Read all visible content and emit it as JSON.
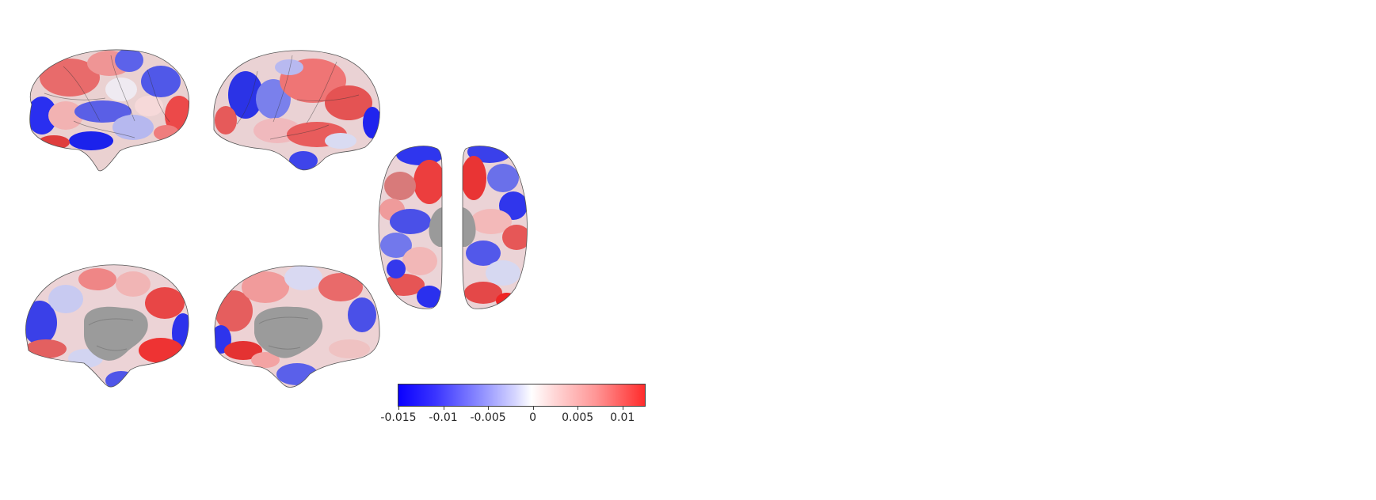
{
  "colorbar": {
    "min": -0.015,
    "max": 0.0125,
    "colors": [
      "#0a00ff",
      "#ffffff",
      "#ff2c2c"
    ],
    "ticks": [
      {
        "label": "-0.015",
        "value": -0.015
      },
      {
        "label": "-0.01",
        "value": -0.01
      },
      {
        "label": "-0.005",
        "value": -0.005
      },
      {
        "label": "0",
        "value": 0
      },
      {
        "label": "0.005",
        "value": 0.005
      },
      {
        "label": "0.01",
        "value": 0.01
      }
    ]
  },
  "views": [
    {
      "name": "left-lateral-brain-view"
    },
    {
      "name": "right-lateral-brain-view"
    },
    {
      "name": "left-medial-brain-view"
    },
    {
      "name": "right-medial-brain-view"
    },
    {
      "name": "left-dorsal-brain-view"
    },
    {
      "name": "right-dorsal-brain-view"
    }
  ]
}
